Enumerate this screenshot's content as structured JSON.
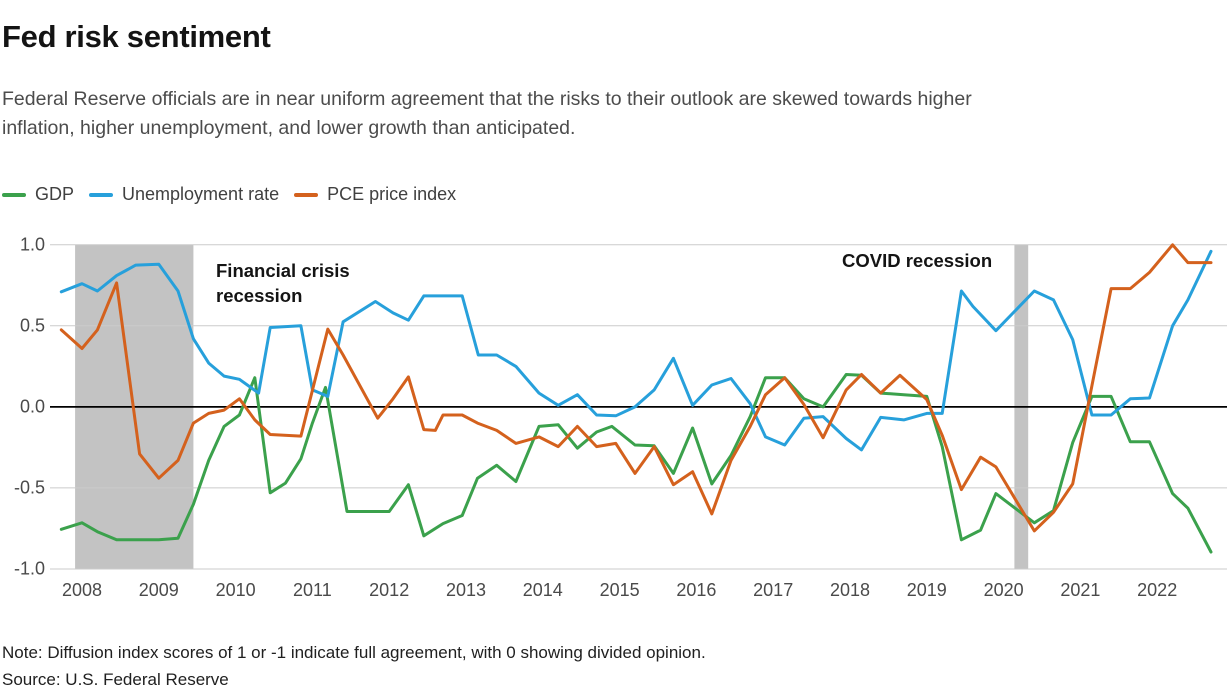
{
  "header": {
    "title": "Fed risk sentiment",
    "subtitle_line1": "Federal Reserve officials are in near uniform agreement that the risks to their outlook are skewed towards higher",
    "subtitle_line2": "inflation, higher unemployment, and lower growth than anticipated."
  },
  "legend": [
    {
      "label": "GDP",
      "color": "#3ba14c"
    },
    {
      "label": "Unemployment rate",
      "color": "#27a0db"
    },
    {
      "label": "PCE price index",
      "color": "#d4611d"
    }
  ],
  "annotations": {
    "financial_crisis": "Financial crisis recession",
    "covid": "COVID recession"
  },
  "footer": {
    "note": "Note: Diffusion index scores of 1 or -1 indicate full agreement, with 0 showing divided opinion.",
    "source": "Source: U.S. Federal Reserve"
  },
  "chart_data": {
    "type": "line",
    "title": "Fed risk sentiment",
    "xlabel": "",
    "ylabel": "Diffusion index",
    "grid": true,
    "legend_position": "top-left",
    "colors": {
      "recession_band": "#c3c3c3",
      "gridline": "#cbcbcb",
      "zero_line": "#000000"
    },
    "x_axis": {
      "ticks": [
        2008,
        2009,
        2010,
        2011,
        2012,
        2013,
        2014,
        2015,
        2016,
        2017,
        2018,
        2019,
        2020,
        2021,
        2022
      ]
    },
    "y_axis": {
      "values": [
        1.0,
        0.5,
        0.0,
        -0.5,
        -1.0
      ],
      "labels": [
        "1.0",
        "0.5",
        "0.0",
        "-0.5",
        "-1.0"
      ],
      "range": [
        -1.0,
        1.0
      ]
    },
    "recession_bands": [
      {
        "name": "Financial crisis recession",
        "from": 2007.91,
        "to": 2009.45
      },
      {
        "name": "COVID recession",
        "from": 2020.14,
        "to": 2020.32
      }
    ],
    "series": [
      {
        "name": "GDP",
        "color": "#3ba14c",
        "points": [
          [
            2007.73,
            -0.755
          ],
          [
            2008.0,
            -0.715
          ],
          [
            2008.2,
            -0.77
          ],
          [
            2008.45,
            -0.82
          ],
          [
            2009.0,
            -0.82
          ],
          [
            2009.25,
            -0.81
          ],
          [
            2009.45,
            -0.6
          ],
          [
            2009.65,
            -0.33
          ],
          [
            2009.85,
            -0.12
          ],
          [
            2010.05,
            -0.05
          ],
          [
            2010.25,
            0.18
          ],
          [
            2010.45,
            -0.53
          ],
          [
            2010.65,
            -0.47
          ],
          [
            2010.85,
            -0.32
          ],
          [
            2011.0,
            -0.1
          ],
          [
            2011.17,
            0.12
          ],
          [
            2011.45,
            -0.645
          ],
          [
            2012.0,
            -0.645
          ],
          [
            2012.25,
            -0.48
          ],
          [
            2012.45,
            -0.795
          ],
          [
            2012.7,
            -0.72
          ],
          [
            2012.95,
            -0.67
          ],
          [
            2013.15,
            -0.44
          ],
          [
            2013.4,
            -0.36
          ],
          [
            2013.65,
            -0.46
          ],
          [
            2013.95,
            -0.12
          ],
          [
            2014.2,
            -0.11
          ],
          [
            2014.45,
            -0.255
          ],
          [
            2014.7,
            -0.155
          ],
          [
            2014.9,
            -0.12
          ],
          [
            2015.2,
            -0.235
          ],
          [
            2015.45,
            -0.24
          ],
          [
            2015.7,
            -0.41
          ],
          [
            2015.95,
            -0.13
          ],
          [
            2016.2,
            -0.475
          ],
          [
            2016.45,
            -0.3
          ],
          [
            2016.7,
            -0.06
          ],
          [
            2016.9,
            0.18
          ],
          [
            2017.15,
            0.18
          ],
          [
            2017.4,
            0.05
          ],
          [
            2017.65,
            0.0
          ],
          [
            2017.95,
            0.2
          ],
          [
            2018.15,
            0.195
          ],
          [
            2018.4,
            0.085
          ],
          [
            2018.7,
            0.075
          ],
          [
            2019.0,
            0.065
          ],
          [
            2019.2,
            -0.245
          ],
          [
            2019.45,
            -0.82
          ],
          [
            2019.7,
            -0.76
          ],
          [
            2019.9,
            -0.535
          ],
          [
            2020.4,
            -0.715
          ],
          [
            2020.65,
            -0.64
          ],
          [
            2020.9,
            -0.22
          ],
          [
            2021.15,
            0.065
          ],
          [
            2021.4,
            0.065
          ],
          [
            2021.65,
            -0.215
          ],
          [
            2021.9,
            -0.215
          ],
          [
            2022.2,
            -0.535
          ],
          [
            2022.4,
            -0.625
          ],
          [
            2022.7,
            -0.895
          ]
        ]
      },
      {
        "name": "Unemployment rate",
        "color": "#27a0db",
        "points": [
          [
            2007.73,
            0.71
          ],
          [
            2008.0,
            0.76
          ],
          [
            2008.2,
            0.715
          ],
          [
            2008.45,
            0.81
          ],
          [
            2008.7,
            0.875
          ],
          [
            2009.0,
            0.88
          ],
          [
            2009.25,
            0.715
          ],
          [
            2009.45,
            0.42
          ],
          [
            2009.65,
            0.27
          ],
          [
            2009.85,
            0.19
          ],
          [
            2010.05,
            0.17
          ],
          [
            2010.3,
            0.085
          ],
          [
            2010.45,
            0.49
          ],
          [
            2010.85,
            0.5
          ],
          [
            2011.0,
            0.105
          ],
          [
            2011.2,
            0.065
          ],
          [
            2011.4,
            0.525
          ],
          [
            2011.82,
            0.65
          ],
          [
            2012.05,
            0.58
          ],
          [
            2012.25,
            0.535
          ],
          [
            2012.45,
            0.685
          ],
          [
            2012.95,
            0.685
          ],
          [
            2013.16,
            0.32
          ],
          [
            2013.4,
            0.32
          ],
          [
            2013.65,
            0.25
          ],
          [
            2013.95,
            0.085
          ],
          [
            2014.2,
            0.01
          ],
          [
            2014.45,
            0.075
          ],
          [
            2014.7,
            -0.05
          ],
          [
            2014.95,
            -0.055
          ],
          [
            2015.2,
            0.0
          ],
          [
            2015.45,
            0.105
          ],
          [
            2015.7,
            0.3
          ],
          [
            2015.95,
            0.01
          ],
          [
            2016.2,
            0.135
          ],
          [
            2016.45,
            0.175
          ],
          [
            2016.7,
            0.02
          ],
          [
            2016.9,
            -0.185
          ],
          [
            2017.15,
            -0.235
          ],
          [
            2017.4,
            -0.07
          ],
          [
            2017.65,
            -0.06
          ],
          [
            2017.95,
            -0.195
          ],
          [
            2018.15,
            -0.265
          ],
          [
            2018.4,
            -0.065
          ],
          [
            2018.7,
            -0.08
          ],
          [
            2019.0,
            -0.04
          ],
          [
            2019.2,
            -0.04
          ],
          [
            2019.45,
            0.715
          ],
          [
            2019.6,
            0.62
          ],
          [
            2019.9,
            0.47
          ],
          [
            2020.4,
            0.715
          ],
          [
            2020.65,
            0.66
          ],
          [
            2020.9,
            0.415
          ],
          [
            2021.15,
            -0.05
          ],
          [
            2021.4,
            -0.05
          ],
          [
            2021.65,
            0.05
          ],
          [
            2021.9,
            0.055
          ],
          [
            2022.2,
            0.5
          ],
          [
            2022.4,
            0.66
          ],
          [
            2022.7,
            0.96
          ]
        ]
      },
      {
        "name": "PCE price index",
        "color": "#d4611d",
        "points": [
          [
            2007.73,
            0.475
          ],
          [
            2008.0,
            0.36
          ],
          [
            2008.2,
            0.475
          ],
          [
            2008.45,
            0.765
          ],
          [
            2008.75,
            -0.29
          ],
          [
            2009.0,
            -0.44
          ],
          [
            2009.25,
            -0.33
          ],
          [
            2009.45,
            -0.1
          ],
          [
            2009.65,
            -0.04
          ],
          [
            2009.85,
            -0.02
          ],
          [
            2010.05,
            0.05
          ],
          [
            2010.25,
            -0.08
          ],
          [
            2010.45,
            -0.17
          ],
          [
            2010.85,
            -0.18
          ],
          [
            2011.2,
            0.48
          ],
          [
            2011.4,
            0.32
          ],
          [
            2011.85,
            -0.07
          ],
          [
            2012.05,
            0.05
          ],
          [
            2012.25,
            0.185
          ],
          [
            2012.45,
            -0.14
          ],
          [
            2012.6,
            -0.145
          ],
          [
            2012.7,
            -0.05
          ],
          [
            2012.95,
            -0.05
          ],
          [
            2013.15,
            -0.1
          ],
          [
            2013.4,
            -0.145
          ],
          [
            2013.65,
            -0.225
          ],
          [
            2013.95,
            -0.185
          ],
          [
            2014.2,
            -0.245
          ],
          [
            2014.45,
            -0.12
          ],
          [
            2014.7,
            -0.245
          ],
          [
            2014.95,
            -0.225
          ],
          [
            2015.2,
            -0.41
          ],
          [
            2015.45,
            -0.245
          ],
          [
            2015.7,
            -0.48
          ],
          [
            2015.95,
            -0.4
          ],
          [
            2016.2,
            -0.66
          ],
          [
            2016.45,
            -0.33
          ],
          [
            2016.7,
            -0.12
          ],
          [
            2016.9,
            0.075
          ],
          [
            2017.15,
            0.18
          ],
          [
            2017.4,
            0.015
          ],
          [
            2017.65,
            -0.19
          ],
          [
            2017.95,
            0.105
          ],
          [
            2018.15,
            0.2
          ],
          [
            2018.4,
            0.085
          ],
          [
            2018.65,
            0.195
          ],
          [
            2019.0,
            0.045
          ],
          [
            2019.2,
            -0.175
          ],
          [
            2019.45,
            -0.51
          ],
          [
            2019.7,
            -0.31
          ],
          [
            2019.9,
            -0.37
          ],
          [
            2020.4,
            -0.765
          ],
          [
            2020.65,
            -0.65
          ],
          [
            2020.9,
            -0.475
          ],
          [
            2021.15,
            0.13
          ],
          [
            2021.4,
            0.73
          ],
          [
            2021.65,
            0.73
          ],
          [
            2021.9,
            0.83
          ],
          [
            2022.2,
            1.0
          ],
          [
            2022.4,
            0.89
          ],
          [
            2022.7,
            0.89
          ]
        ]
      }
    ]
  }
}
